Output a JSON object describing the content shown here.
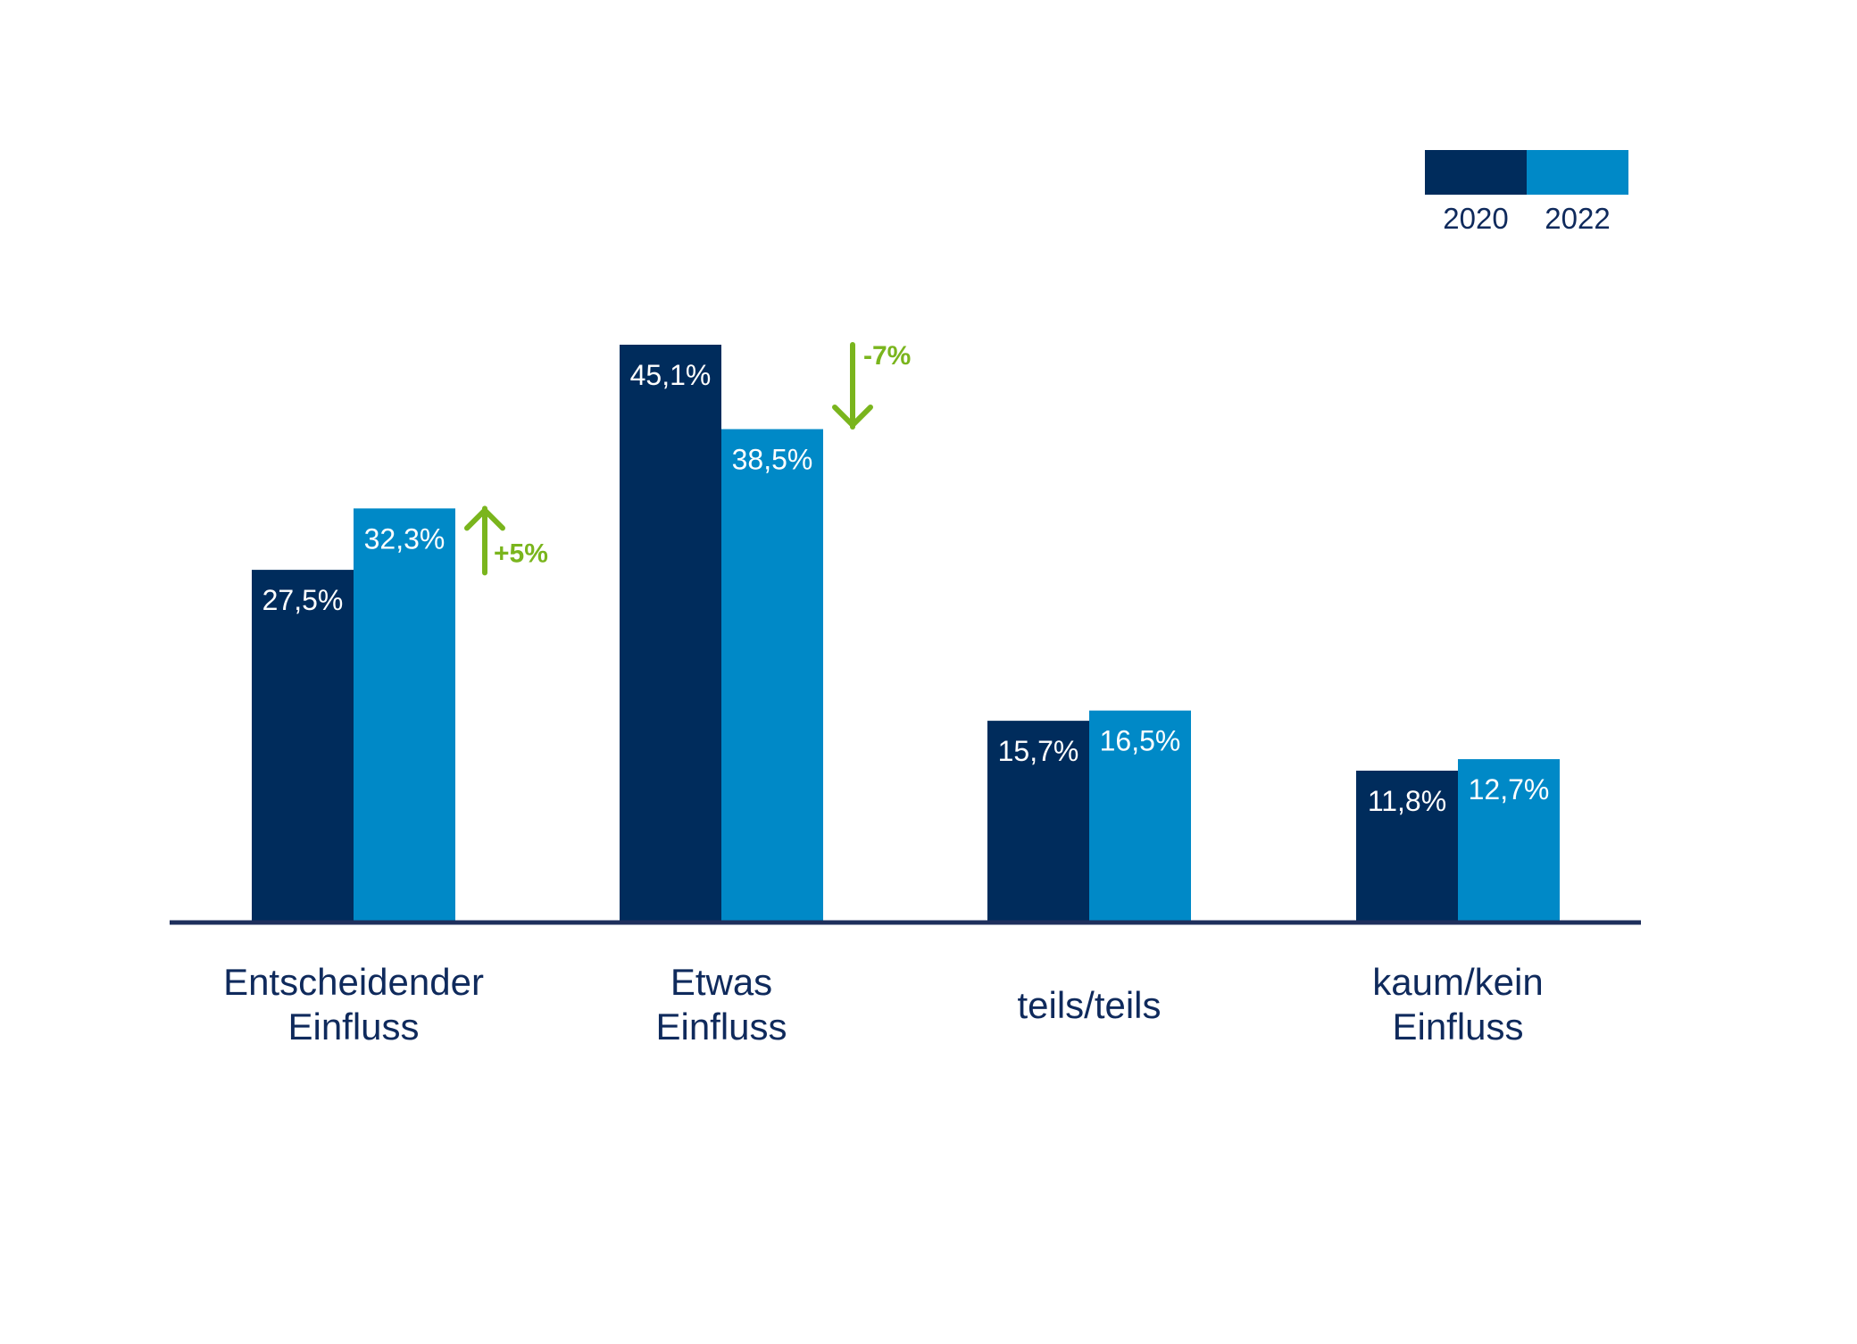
{
  "chart_data": {
    "type": "bar",
    "categories": [
      [
        "Entscheidender",
        "Einfluss"
      ],
      [
        "Etwas",
        "Einfluss"
      ],
      [
        "teils/teils"
      ],
      [
        "kaum/kein",
        "Einfluss"
      ]
    ],
    "series": [
      {
        "name": "2020",
        "color": "#002c5c",
        "values": [
          27.5,
          45.1,
          15.7,
          11.8
        ],
        "labels": [
          "27,5%",
          "45,1%",
          "15,7%",
          "11,8%"
        ]
      },
      {
        "name": "2022",
        "color": "#0089c7",
        "values": [
          32.3,
          38.5,
          16.5,
          12.7
        ],
        "labels": [
          "32,3%",
          "38,5%",
          "16,5%",
          "12,7%"
        ]
      }
    ],
    "annotations": [
      {
        "category_index": 0,
        "text": "+5%",
        "direction": "up",
        "color": "#7ab51d"
      },
      {
        "category_index": 1,
        "text": "-7%",
        "direction": "down",
        "color": "#7ab51d"
      }
    ],
    "legend_position": "top-right",
    "axis_color": "#1e2f5c",
    "ylim": [
      0,
      45.1
    ],
    "grid": false
  }
}
